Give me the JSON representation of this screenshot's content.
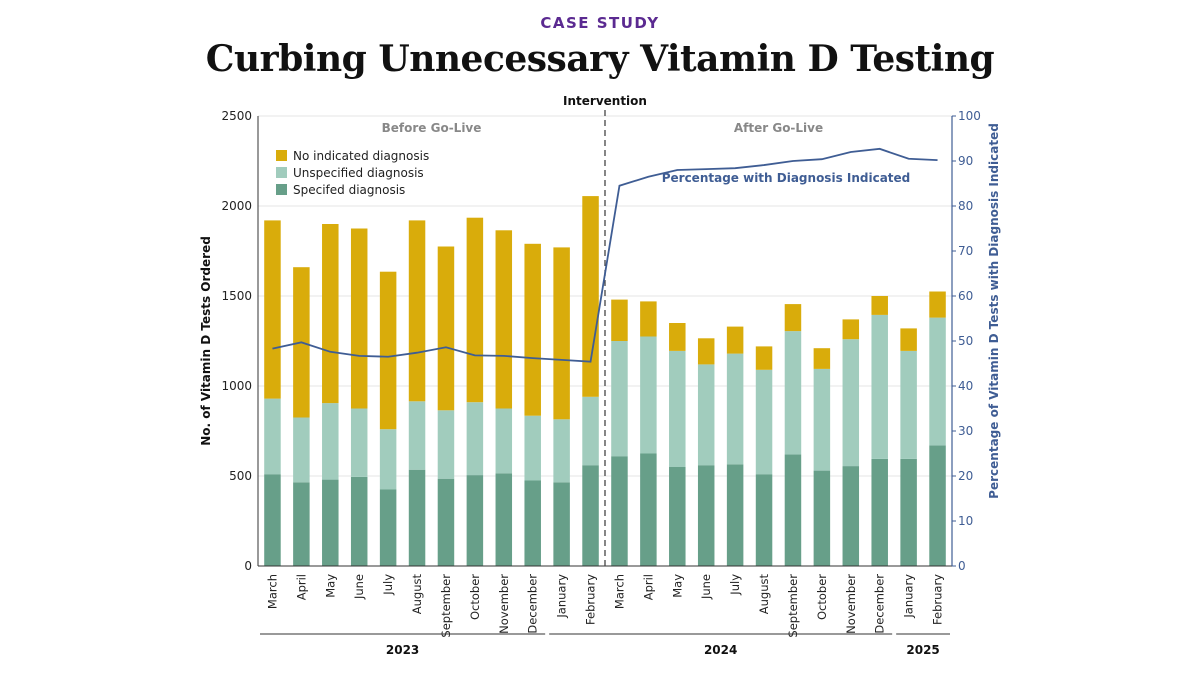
{
  "header": {
    "kicker": "CASE STUDY",
    "title": "Curbing Unnecessary Vitamin D Testing"
  },
  "colors": {
    "no_diagnosis": "#d9ac0b",
    "unspecified": "#a1ccbd",
    "specified": "#679f89",
    "line": "#3f5d94",
    "kicker": "#5b2a91"
  },
  "chart_data": {
    "type": "bar",
    "stacked": true,
    "categories": [
      "March",
      "April",
      "May",
      "June",
      "July",
      "August",
      "September",
      "October",
      "November",
      "December",
      "January",
      "February",
      "March",
      "April",
      "May",
      "June",
      "July",
      "August",
      "September",
      "October",
      "November",
      "December",
      "January",
      "February"
    ],
    "year_groups": [
      {
        "label": "2023",
        "start": 0,
        "end": 9
      },
      {
        "label": "2024",
        "start": 10,
        "end": 21
      },
      {
        "label": "2025",
        "start": 22,
        "end": 23
      }
    ],
    "series": [
      {
        "name": "Specifed diagnosis",
        "color": "#679f89",
        "values": [
          510,
          465,
          480,
          495,
          425,
          535,
          485,
          505,
          515,
          475,
          465,
          560,
          610,
          625,
          550,
          560,
          565,
          510,
          620,
          530,
          555,
          595,
          595,
          670
        ]
      },
      {
        "name": "Unspecified diagnosis",
        "color": "#a1ccbd",
        "values": [
          420,
          360,
          425,
          380,
          335,
          380,
          380,
          405,
          360,
          360,
          350,
          380,
          640,
          650,
          645,
          560,
          615,
          580,
          685,
          565,
          705,
          800,
          600,
          710
        ]
      },
      {
        "name": "No indicated diagnosis",
        "color": "#d9ac0b",
        "values": [
          990,
          835,
          995,
          1000,
          875,
          1005,
          910,
          1025,
          990,
          955,
          955,
          1115,
          230,
          195,
          155,
          145,
          150,
          130,
          150,
          115,
          110,
          105,
          125,
          145
        ]
      }
    ],
    "line_series": {
      "name": "Percentage with Diagnosis Indicated",
      "axis": "right",
      "values": [
        48.3,
        49.7,
        47.6,
        46.7,
        46.5,
        47.4,
        48.6,
        46.8,
        46.7,
        46.2,
        45.8,
        45.4,
        84.5,
        86.5,
        88.0,
        88.2,
        88.4,
        89.1,
        90.0,
        90.4,
        92.0,
        92.7,
        90.5,
        90.2
      ]
    },
    "left_axis": {
      "label": "No. of Vitamin D Tests Ordered",
      "ylim": [
        0,
        2500
      ],
      "ticks": [
        "0",
        "500",
        "1000",
        "1500",
        "2000",
        "2500"
      ]
    },
    "right_axis": {
      "label": "Percentage of Vitamin D Tests with Diagnosis Indicated",
      "ylim": [
        0,
        100
      ],
      "ticks": [
        "0",
        "10",
        "20",
        "30",
        "40",
        "50",
        "60",
        "70",
        "80",
        "90",
        "100"
      ]
    },
    "intervention": {
      "label": "Intervention",
      "after_index": 11
    },
    "annotations": {
      "before": "Before Go-Live",
      "after": "After Go-Live"
    },
    "legend_position": "top-left",
    "grid": true
  }
}
